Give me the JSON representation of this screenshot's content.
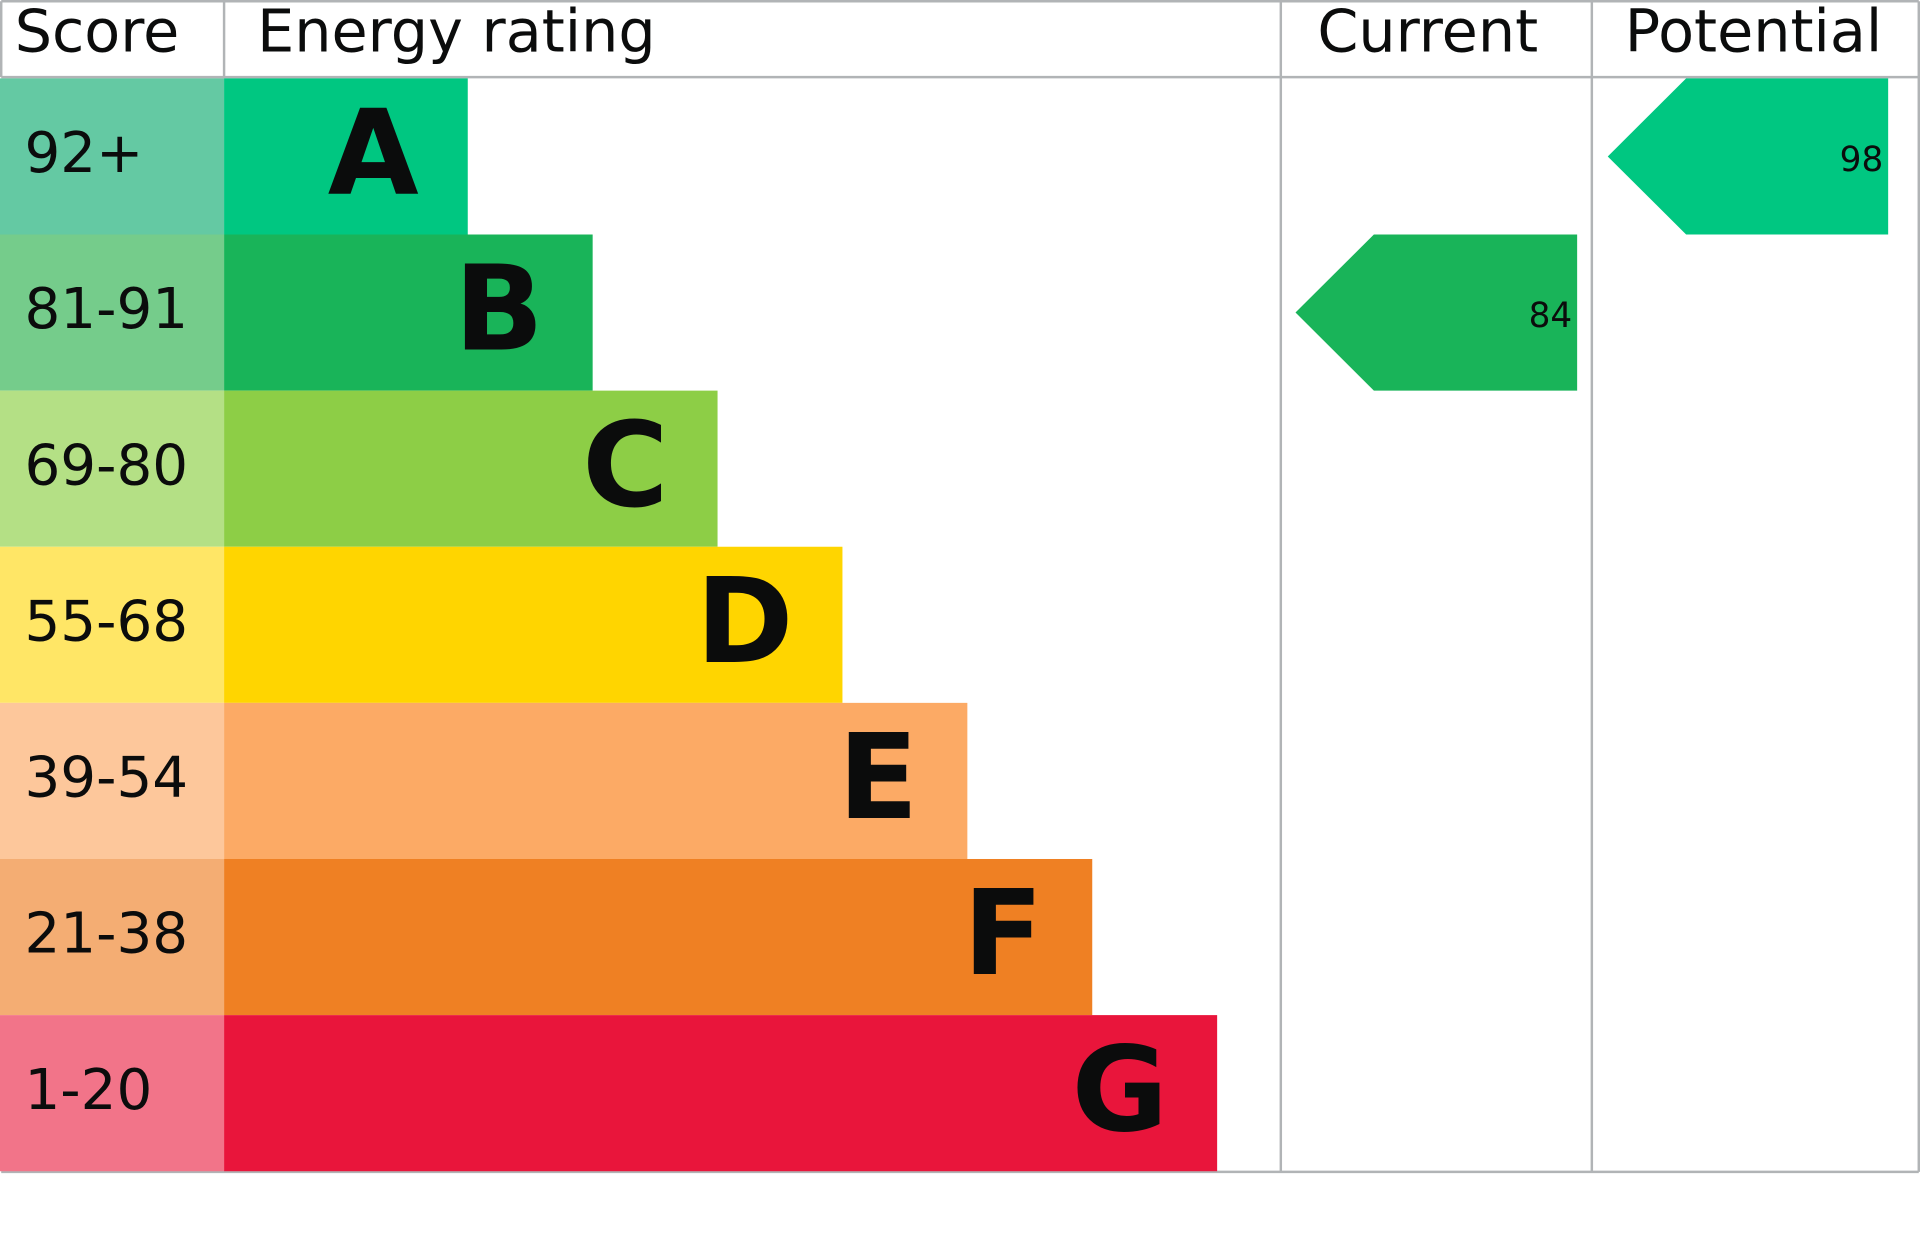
{
  "header": {
    "score": "Score",
    "rating": "Energy rating",
    "current": "Current",
    "potential": "Potential"
  },
  "bands": [
    {
      "score": "92+",
      "letter": "A",
      "color": "#00c781",
      "score_color": "#64c9a3"
    },
    {
      "score": "81-91",
      "letter": "B",
      "color": "#19b459",
      "score_color": "#75cc8b"
    },
    {
      "score": "69-80",
      "letter": "C",
      "color": "#8dce46",
      "score_color": "#b4e085"
    },
    {
      "score": "55-68",
      "letter": "D",
      "color": "#ffd500",
      "score_color": "#ffe666"
    },
    {
      "score": "39-54",
      "letter": "E",
      "color": "#fcaa65",
      "score_color": "#fdc79b"
    },
    {
      "score": "21-38",
      "letter": "F",
      "color": "#ef8023",
      "score_color": "#f4ad73"
    },
    {
      "score": "1-20",
      "letter": "G",
      "color": "#e9153b",
      "score_color": "#f27489"
    }
  ],
  "current": 84,
  "potential": 98
}
